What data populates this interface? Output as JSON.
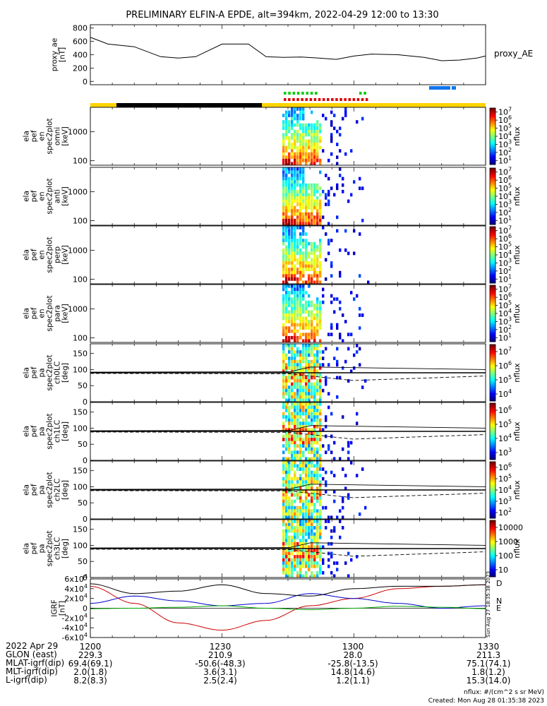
{
  "title": "PRELIMINARY ELFIN-A EPDE, alt=394km, 2022-04-29 12:00 to 13:30",
  "chart_data": [
    {
      "type": "line",
      "id": "proxy_ae",
      "ylabel_lines": [
        "proxy_ae",
        "[nT]"
      ],
      "right_label": "proxy_AE",
      "yticks": [
        "0",
        "200",
        "400",
        "600",
        "800"
      ],
      "ylim": [
        -50,
        850
      ],
      "x_minutes": [
        0,
        4,
        10,
        16,
        20,
        24,
        30,
        36,
        40,
        44,
        48,
        52,
        56,
        60,
        64,
        70,
        76,
        80,
        84,
        88,
        90
      ],
      "values": [
        660,
        560,
        520,
        370,
        350,
        370,
        560,
        560,
        370,
        360,
        365,
        350,
        330,
        380,
        410,
        400,
        360,
        310,
        320,
        350,
        380
      ]
    },
    {
      "type": "heatmap",
      "id": "spec_omni",
      "ylabel_lines": [
        "ela",
        "pef",
        "en",
        "spec2plot",
        "omni",
        "[keV]"
      ],
      "yticks": [
        "100",
        "1000"
      ],
      "cbar_ticks": [
        "10^1",
        "10^2",
        "10^3",
        "10^4",
        "10^5",
        "10^6",
        "10^7"
      ],
      "cbar_label": "nflux"
    },
    {
      "type": "heatmap",
      "id": "spec_anti",
      "ylabel_lines": [
        "ela",
        "pef",
        "en",
        "spec2plot",
        "anti",
        "[keV]"
      ],
      "yticks": [
        "100",
        "1000"
      ],
      "cbar_ticks": [
        "10^1",
        "10^2",
        "10^3",
        "10^4",
        "10^5",
        "10^6",
        "10^7"
      ],
      "cbar_label": "nflux"
    },
    {
      "type": "heatmap",
      "id": "spec_perp",
      "ylabel_lines": [
        "ela",
        "pef",
        "en",
        "spec2plot",
        "perp",
        "[keV]"
      ],
      "yticks": [
        "100",
        "1000"
      ],
      "cbar_ticks": [
        "10^1",
        "10^2",
        "10^3",
        "10^4",
        "10^5",
        "10^6",
        "10^7"
      ],
      "cbar_label": "nflux"
    },
    {
      "type": "heatmap",
      "id": "spec_para",
      "ylabel_lines": [
        "ela",
        "pef",
        "en",
        "spec2plot",
        "para",
        "[keV]"
      ],
      "yticks": [
        "100",
        "1000"
      ],
      "cbar_ticks": [
        "10^1",
        "10^2",
        "10^3",
        "10^4",
        "10^5",
        "10^6",
        "10^7"
      ],
      "cbar_label": "nflux"
    },
    {
      "type": "heatmap",
      "id": "pa_ch0",
      "ylabel_lines": [
        "ela",
        "pef",
        "pa",
        "spec2plot",
        "ch0LC",
        "[deg]"
      ],
      "yticks": [
        "0",
        "50",
        "100",
        "150"
      ],
      "cbar_ticks": [
        "10^4",
        "10^5",
        "10^6",
        "10^7"
      ],
      "cbar_label": "nflux"
    },
    {
      "type": "heatmap",
      "id": "pa_ch1",
      "ylabel_lines": [
        "ela",
        "pef",
        "pa",
        "spec2plot",
        "ch1LC",
        "[deg]"
      ],
      "yticks": [
        "0",
        "50",
        "100",
        "150"
      ],
      "cbar_ticks": [
        "10^3",
        "10^4",
        "10^5",
        "10^6"
      ],
      "cbar_label": "nflux"
    },
    {
      "type": "heatmap",
      "id": "pa_ch2",
      "ylabel_lines": [
        "ela",
        "pef",
        "pa",
        "spec2plot",
        "ch2LC",
        "[deg]"
      ],
      "yticks": [
        "0",
        "50",
        "100",
        "150"
      ],
      "cbar_ticks": [
        "10^2",
        "10^3",
        "10^4",
        "10^5",
        "10^6"
      ],
      "cbar_label": "nflux"
    },
    {
      "type": "heatmap",
      "id": "pa_ch3",
      "ylabel_lines": [
        "ela",
        "pef",
        "pa",
        "spec2plot",
        "ch3LC",
        "[deg]"
      ],
      "yticks": [
        "0",
        "50",
        "100",
        "150"
      ],
      "cbar_ticks": [
        "10",
        "100",
        "1000",
        "10000"
      ],
      "cbar_label": "nflux"
    },
    {
      "type": "line",
      "id": "igrf",
      "ylabel_lines": [
        "IGRF",
        "[nT]"
      ],
      "yticks": [
        "-6x10^4",
        "-4x10^4",
        "-2x10^4",
        "0",
        "2x10^4",
        "4x10^4",
        "6x10^4"
      ],
      "ylim": [
        -60000,
        60000
      ],
      "x_minutes": [
        0,
        10,
        20,
        30,
        40,
        50,
        60,
        70,
        80,
        90
      ],
      "series": [
        {
          "name": "D",
          "color": "#cc0000",
          "values": [
            45000,
            10000,
            -30000,
            -45000,
            -25000,
            5000,
            20000,
            40000,
            45000,
            48000
          ]
        },
        {
          "name": "N",
          "color": "#0000cc",
          "values": [
            10000,
            25000,
            15000,
            5000,
            10000,
            30000,
            20000,
            10000,
            0,
            5000
          ]
        },
        {
          "name": "E",
          "color": "#00aa00",
          "values": [
            -1000,
            0,
            2000,
            5000,
            0,
            -3000,
            0,
            4000,
            2000,
            -1000
          ]
        },
        {
          "name": "",
          "color": "#000000",
          "values": [
            50000,
            30000,
            35000,
            48000,
            30000,
            25000,
            40000,
            45000,
            45000,
            48000
          ]
        }
      ]
    }
  ],
  "x_ticks": [
    "1200",
    "1230",
    "1300",
    "1330"
  ],
  "footer": {
    "rows": [
      {
        "label": "2022 Apr 29",
        "values": [
          "1200",
          "1230",
          "1300",
          "1330"
        ]
      },
      {
        "label": "GLON (east)",
        "values": [
          "229.3",
          "210.9",
          "28.0",
          "211.3"
        ]
      },
      {
        "label": "MLAT-igrf(dip)",
        "values": [
          "69.4(69.1)",
          "-50.6(-48.3)",
          "-25.8(-13.5)",
          "75.1(74.1)"
        ]
      },
      {
        "label": "MLT-igrf(dip)",
        "values": [
          "2.0(1.8)",
          "3.6(3.1)",
          "14.8(14.6)",
          "1.8(1.2)"
        ]
      },
      {
        "label": "L-igrf(dip)",
        "values": [
          "8.2(8.3)",
          "2.5(2.4)",
          "1.2(1.1)",
          "15.3(14.0)"
        ]
      }
    ],
    "unit_note": "nflux: #/(cm^2 s sr MeV)",
    "created": "Created: Mon Aug 28 01:35:38 2023",
    "side_stamp": "Sun Aug 27 18:35:38 2023"
  },
  "colors": {
    "yellow_bar": "#ffd400",
    "black_bar": "#000000",
    "green_marks": "#00cc00",
    "red_marks": "#dd0000",
    "blue_marks": "#1177ee"
  }
}
